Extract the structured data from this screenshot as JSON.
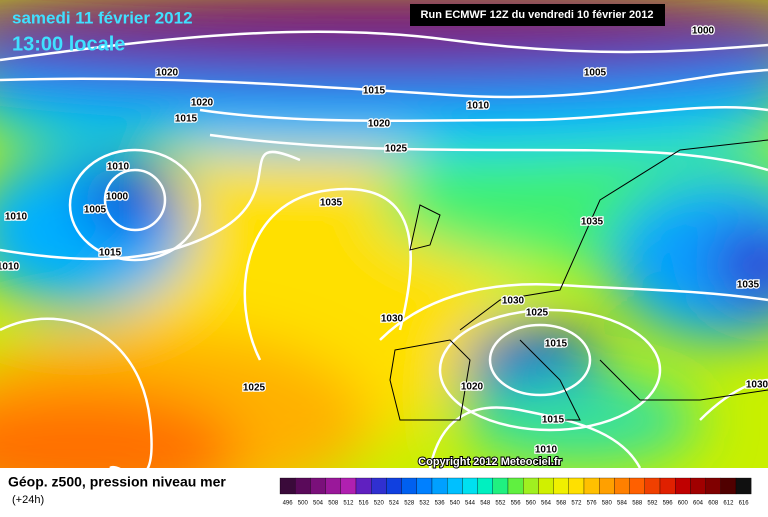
{
  "header": {
    "date": "samedi 11 février 2012",
    "time": "13:00 locale",
    "run": "Run ECMWF 12Z du vendredi 10 février 2012"
  },
  "isobar_labels": [
    "1000",
    "1005",
    "1010",
    "1015",
    "1020",
    "1020",
    "1015",
    "1020",
    "1025",
    "1010",
    "1000",
    "1005",
    "1010",
    "1015",
    "1010",
    "1035",
    "1035",
    "1035",
    "1030",
    "1025",
    "1030",
    "1015",
    "1025",
    "1020",
    "1030",
    "1015",
    "1010"
  ],
  "copyright": "Copyright 2012 Meteociel.fr",
  "footer": {
    "title": "Géop. z500, pression niveau mer",
    "lead": "(+24h)"
  },
  "colorbar": {
    "labels": [
      "496",
      "500",
      "504",
      "508",
      "512",
      "516",
      "520",
      "524",
      "528",
      "532",
      "536",
      "540",
      "544",
      "548",
      "552",
      "556",
      "560",
      "564",
      "568",
      "572",
      "576",
      "580",
      "584",
      "588",
      "592",
      "596",
      "600",
      "604",
      "608",
      "612",
      "616"
    ],
    "colors": [
      "#3a0a3a",
      "#5a0a5a",
      "#7a107a",
      "#9a189a",
      "#b020b0",
      "#6020c0",
      "#3030d0",
      "#1040e0",
      "#0060f0",
      "#0080ff",
      "#00a0ff",
      "#00c0ff",
      "#00e0f0",
      "#00f0c0",
      "#20f080",
      "#60f040",
      "#a0f020",
      "#d0f000",
      "#f0f000",
      "#ffe000",
      "#ffc000",
      "#ffa000",
      "#ff8000",
      "#ff6000",
      "#f04000",
      "#e02000",
      "#c00000",
      "#a00000",
      "#800000",
      "#500000",
      "#101010"
    ]
  }
}
